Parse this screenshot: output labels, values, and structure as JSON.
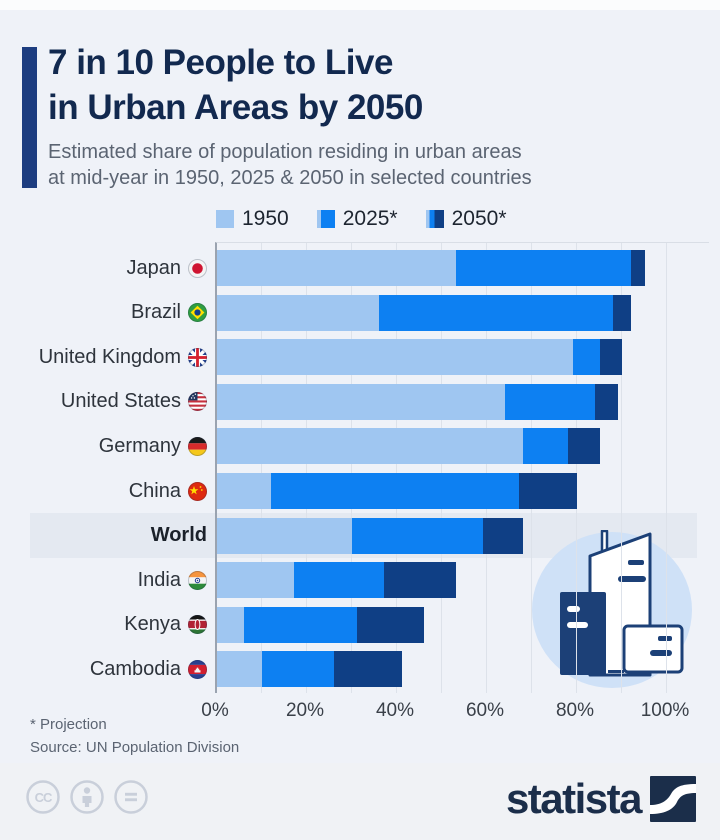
{
  "header": {
    "title_line1": "7 in 10 People to Live",
    "title_line2": "in Urban Areas by 2050",
    "subtitle_line1": "Estimated share of population residing in urban areas",
    "subtitle_line2": "at mid-year in 1950, 2025 & 2050 in selected countries"
  },
  "legend": {
    "items": [
      {
        "label": "1950"
      },
      {
        "label": "2025*"
      },
      {
        "label": "2050*"
      }
    ]
  },
  "chart_data": {
    "type": "bar",
    "variant": "horizontal-stacked-progression",
    "unit": "%",
    "xlim": [
      0,
      100
    ],
    "x_ticks": [
      "0%",
      "20%",
      "40%",
      "60%",
      "80%",
      "100%"
    ],
    "grid": "vertical every 10%",
    "legend_position": "top-center",
    "highlighted_category": "World",
    "categories": [
      "Japan",
      "Brazil",
      "United Kingdom",
      "United States",
      "Germany",
      "China",
      "World",
      "India",
      "Kenya",
      "Cambodia"
    ],
    "flags": [
      "jp",
      "br",
      "gb",
      "us",
      "de",
      "cn",
      null,
      "in",
      "ke",
      "kh"
    ],
    "series": [
      {
        "name": "1950",
        "values": [
          53,
          36,
          79,
          64,
          68,
          12,
          30,
          17,
          6,
          10
        ]
      },
      {
        "name": "2025*",
        "values": [
          92,
          88,
          85,
          84,
          78,
          67,
          59,
          37,
          31,
          26
        ]
      },
      {
        "name": "2050*",
        "values": [
          95,
          92,
          90,
          89,
          85,
          80,
          68,
          53,
          46,
          41
        ]
      }
    ],
    "colors": {
      "y1950": "#9fc6f1",
      "y2025": "#0d80f2",
      "y2050": "#0f3f85"
    }
  },
  "footer": {
    "footnote": "* Projection",
    "source": "Source: UN Population Division"
  },
  "branding": {
    "logo_text": "statista",
    "cc_icons": [
      "cc",
      "by",
      "nd"
    ]
  }
}
